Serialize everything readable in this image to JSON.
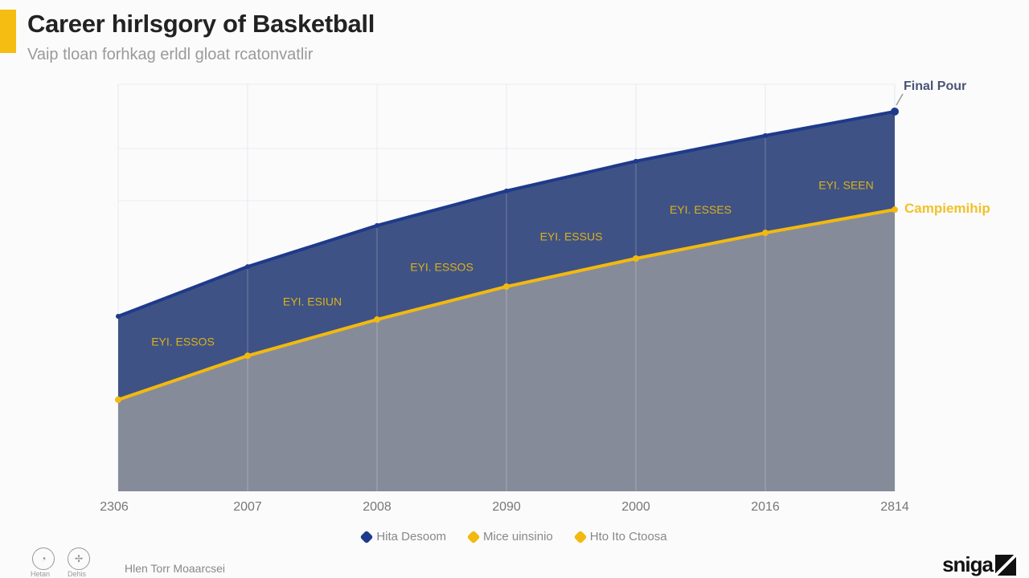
{
  "header": {
    "title": "Career hirlsgory of Basketball",
    "subtitle": "Vaip tloan forhkag erldl gloat rcatonvatlir"
  },
  "colors": {
    "accent": "#f5bd12",
    "navy": "#1e3a8a",
    "navy_fill": "#3f5285",
    "gold": "#f2b90f",
    "gray_fill": "#868b9a"
  },
  "chart_data": {
    "type": "area",
    "title": "Career hirlsgory of Basketball",
    "categories": [
      "2306",
      "2007",
      "2008",
      "2090",
      "2000",
      "2016",
      "2814"
    ],
    "grid": true,
    "legend_placement": "bottom",
    "series": [
      {
        "name": "Final Pour",
        "color": "#1e3a8a",
        "values": [
          43,
          55.2,
          65.3,
          73.8,
          81.1,
          87.4,
          93.3
        ]
      },
      {
        "name": "Campiemihip",
        "color": "#f2b90f",
        "values": [
          22.5,
          33.3,
          42.2,
          50.3,
          57.2,
          63.5,
          69.2
        ]
      }
    ],
    "data_labels": [
      "EYI. ESSOS",
      "EYI. ESIUN",
      "EYI. ESSOS",
      "EYI. ESSUS",
      "EYI. ESSES",
      "EYI. SEEN"
    ],
    "end_labels": {
      "top": "Final Pour",
      "bottom": "Campiemihip"
    }
  },
  "legend": [
    {
      "label": "Hita Desoom",
      "color": "#1e3a8a"
    },
    {
      "label": "Mice uinsinio",
      "color": "#f2b90f"
    },
    {
      "label": "Hto Ito Ctoosa",
      "color": "#f2b90f"
    }
  ],
  "footer": {
    "icons": [
      {
        "icon": "clock-icon",
        "label": "Hetan"
      },
      {
        "icon": "compass-icon",
        "label": "Dehis"
      }
    ],
    "text": "Hlen Torr Moaarcsei",
    "logo": "sniga"
  }
}
